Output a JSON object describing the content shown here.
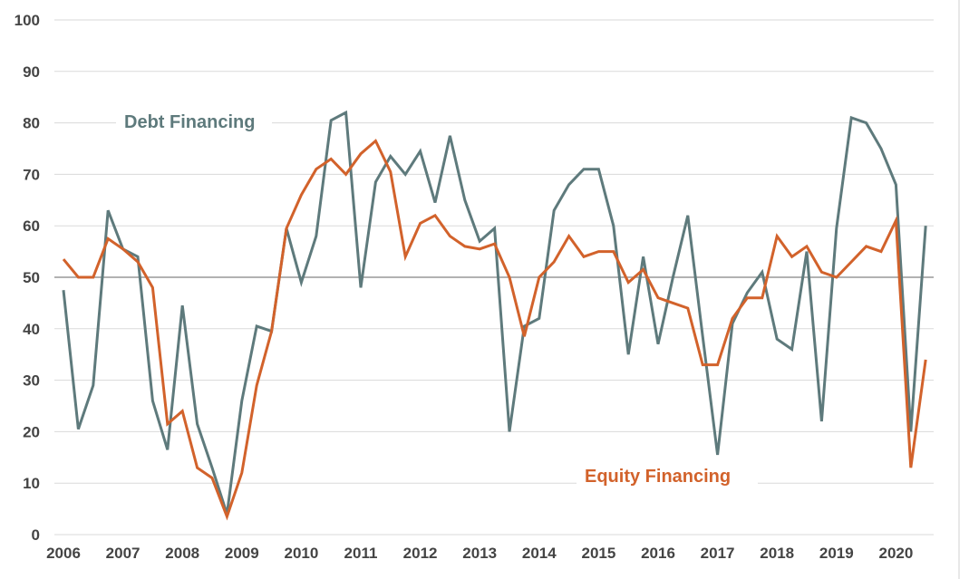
{
  "chart_data": {
    "type": "line",
    "title": "",
    "xlabel": "",
    "ylabel": "",
    "ylim": [
      0,
      100
    ],
    "yticks": [
      "0",
      "10",
      "20",
      "30",
      "40",
      "50",
      "60",
      "70",
      "80",
      "90",
      "100"
    ],
    "xticks": [
      "2006",
      "2007",
      "2008",
      "2009",
      "2010",
      "2011",
      "2012",
      "2013",
      "2014",
      "2015",
      "2016",
      "2017",
      "2018",
      "2019",
      "2020"
    ],
    "x_start": "2006 Q1",
    "frequency": "quarterly",
    "grid": true,
    "reference_line": 50,
    "series": [
      {
        "name": "Debt Financing",
        "color": "#5e7a7c",
        "values": [
          47.5,
          20.5,
          29,
          63,
          55.5,
          54,
          26,
          16.5,
          44.5,
          21.5,
          13,
          4,
          26,
          40.5,
          39.5,
          59.5,
          49,
          58,
          80.5,
          82,
          48,
          68.5,
          73.5,
          70,
          74.5,
          64.5,
          77.5,
          65,
          57,
          59.5,
          20,
          40.5,
          42,
          63,
          68,
          71,
          71,
          60,
          35,
          54,
          37,
          50,
          62,
          38.5,
          15.5,
          41,
          47,
          51,
          38,
          36,
          55,
          22,
          59.5,
          81,
          80,
          75,
          68,
          20,
          60
        ]
      },
      {
        "name": "Equity Financing",
        "color": "#d2622b",
        "values": [
          53.5,
          50,
          50,
          57.5,
          55.5,
          53,
          48,
          21.5,
          24,
          13,
          11,
          3.5,
          12,
          29,
          39.5,
          59.5,
          66,
          71,
          73,
          70,
          74,
          76.5,
          70.5,
          54,
          60.5,
          62,
          58,
          56,
          55.5,
          56.5,
          50,
          38.5,
          50,
          53,
          58,
          54,
          55,
          55,
          49,
          51.5,
          46,
          45,
          44,
          33,
          33,
          42,
          46,
          46,
          58,
          54,
          56,
          51,
          50,
          53,
          56,
          55,
          61,
          13,
          34
        ]
      }
    ]
  }
}
